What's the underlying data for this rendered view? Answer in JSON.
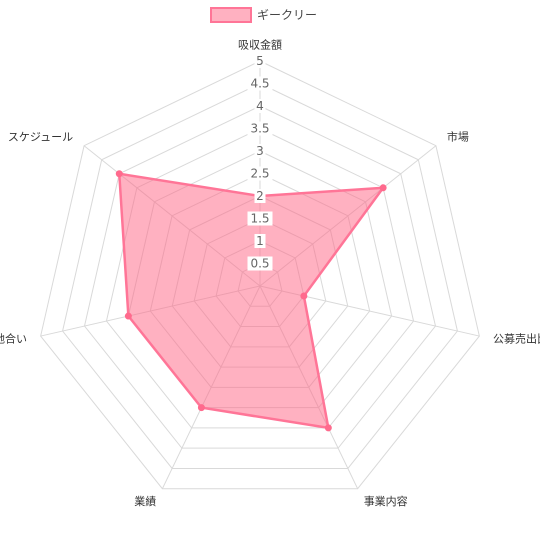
{
  "chart_data": {
    "type": "radar",
    "title": "",
    "axes": [
      "吸収金額",
      "市場",
      "公募売出比",
      "事業内容",
      "業績",
      "地合い",
      "スケジュール"
    ],
    "ticks": [
      "0.5",
      "1",
      "1.5",
      "2",
      "2.5",
      "3",
      "3.5",
      "4",
      "4.5",
      "5"
    ],
    "rmin": 0,
    "rmax": 5,
    "grid": true,
    "legend_position": "top",
    "series": [
      {
        "name": "ギークリー",
        "values": [
          2,
          3.5,
          1,
          3.5,
          3,
          3,
          4
        ],
        "fill_color": "rgba(255,99,132,0.5)",
        "line_color": "#ff7597",
        "point_color": "#ff6a8d"
      }
    ]
  },
  "colors": {
    "grid": "#d9d9d9",
    "legend_box_fill": "#ffb1c1",
    "legend_box_border": "#ff7597"
  }
}
